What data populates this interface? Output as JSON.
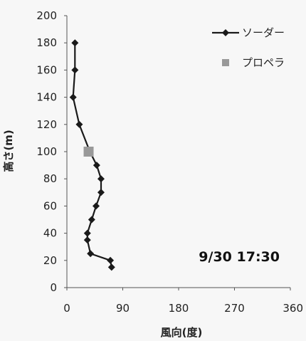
{
  "chart_data": {
    "type": "line",
    "xlabel": "風向(度)",
    "ylabel": "高さ(m)",
    "xlim": [
      0,
      360
    ],
    "ylim": [
      0,
      200
    ],
    "xticks": [
      "0",
      "90",
      "180",
      "270",
      "360"
    ],
    "yticks": [
      "0",
      "20",
      "40",
      "60",
      "80",
      "100",
      "120",
      "140",
      "160",
      "180",
      "200"
    ],
    "grid": false,
    "legend": "top-right",
    "annotation": "9/30 17:30",
    "series": [
      {
        "name": "ソーダー",
        "marker": "diamond",
        "color": "#1a1a1a",
        "points": [
          {
            "x": 72,
            "y": 15
          },
          {
            "x": 70,
            "y": 20
          },
          {
            "x": 38,
            "y": 25
          },
          {
            "x": 33,
            "y": 35
          },
          {
            "x": 33,
            "y": 40
          },
          {
            "x": 40,
            "y": 50
          },
          {
            "x": 47,
            "y": 60
          },
          {
            "x": 55,
            "y": 70
          },
          {
            "x": 55,
            "y": 80
          },
          {
            "x": 48,
            "y": 90
          },
          {
            "x": 37,
            "y": 100
          },
          {
            "x": 20,
            "y": 120
          },
          {
            "x": 10,
            "y": 140
          },
          {
            "x": 13,
            "y": 160
          },
          {
            "x": 13,
            "y": 180
          }
        ]
      },
      {
        "name": "プロペラ",
        "marker": "square",
        "color": "#999999",
        "points": [
          {
            "x": 35,
            "y": 100
          }
        ]
      }
    ]
  }
}
